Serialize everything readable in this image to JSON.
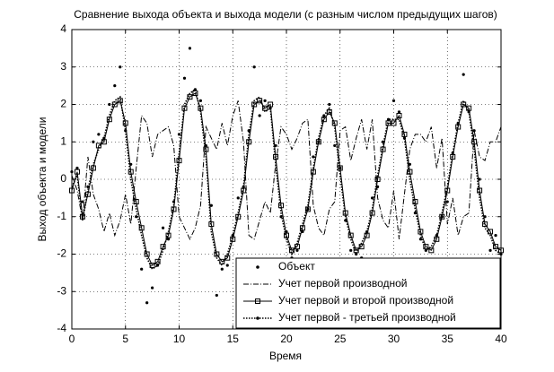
{
  "chart_data": {
    "type": "line",
    "title": "Сравнение выхода объекта и выхода модели (с разным числом предыдущих шагов)",
    "xlabel": "Время",
    "ylabel": "Выход объекта и модели",
    "x": [
      0,
      0.5,
      1,
      1.5,
      2,
      2.5,
      3,
      3.5,
      4,
      4.5,
      5,
      5.5,
      6,
      6.5,
      7,
      7.5,
      8,
      8.5,
      9,
      9.5,
      10,
      10.5,
      11,
      11.5,
      12,
      12.5,
      13,
      13.5,
      14,
      14.5,
      15,
      15.5,
      16,
      16.5,
      17,
      17.5,
      18,
      18.5,
      19,
      19.5,
      20,
      20.5,
      21,
      21.5,
      22,
      22.5,
      23,
      23.5,
      24,
      24.5,
      25,
      25.5,
      26,
      26.5,
      27,
      27.5,
      28,
      28.5,
      29,
      29.5,
      30,
      30.5,
      31,
      31.5,
      32,
      32.5,
      33,
      33.5,
      34,
      34.5,
      35,
      35.5,
      36,
      36.5,
      37,
      37.5,
      38,
      38.5,
      39,
      39.5,
      40
    ],
    "series": [
      {
        "name": "Объект",
        "color": "#000000",
        "linestyle": "none",
        "marker": "dot",
        "values": [
          0.2,
          0.3,
          -0.6,
          -0.2,
          1.0,
          1.2,
          1.1,
          2.0,
          2.5,
          3.0,
          1.3,
          0.4,
          -1.0,
          -2.4,
          -3.3,
          -2.9,
          -2.3,
          -1.3,
          -1.6,
          -0.6,
          1.2,
          2.7,
          3.5,
          2.4,
          2.1,
          0.9,
          -0.7,
          -3.1,
          -2.4,
          -2.3,
          -1.5,
          -0.5,
          -0.2,
          1.3,
          3.0,
          1.7,
          2.1,
          1.9,
          0.9,
          -1.0,
          -1.4,
          -2.1,
          -1.9,
          -1.4,
          -0.8,
          0.6,
          1.0,
          1.7,
          2.0,
          0.9,
          0.3,
          -1.1,
          -1.9,
          -2.0,
          -2.1,
          -1.4,
          -0.5,
          -0.2,
          1.0,
          1.6,
          2.1,
          1.8,
          1.1,
          0.4,
          -0.9,
          -1.6,
          -1.9,
          -2.2,
          -1.5,
          -1.0,
          -0.6,
          0.7,
          1.5,
          2.8,
          1.8,
          1.3,
          0.0,
          -1.0,
          -1.9,
          -1.5,
          -2.0
        ]
      },
      {
        "name": "Учет первой производной",
        "color": "#000000",
        "linestyle": "dashdot",
        "marker": "none",
        "values": [
          0.1,
          -0.3,
          -1.1,
          0.6,
          -0.4,
          -0.8,
          -1.4,
          -0.9,
          -1.5,
          -1.1,
          -0.4,
          -1.2,
          0.3,
          1.7,
          1.5,
          0.6,
          1.2,
          1.3,
          1.4,
          0.9,
          -1.0,
          -1.3,
          -1.6,
          -1.3,
          -0.7,
          1.4,
          1.1,
          0.8,
          1.5,
          0.9,
          1.7,
          2.1,
          1.0,
          -1.5,
          -1.6,
          -1.1,
          -0.6,
          -0.9,
          0.4,
          1.4,
          1.2,
          0.8,
          1.1,
          1.5,
          1.6,
          -0.7,
          -1.3,
          -1.5,
          -0.8,
          -0.6,
          1.3,
          1.4,
          0.5,
          1.1,
          1.6,
          0.8,
          1.6,
          -0.5,
          -1.1,
          -1.3,
          -0.3,
          -1.6,
          -0.4,
          0.8,
          1.2,
          1.2,
          1.0,
          1.4,
          0.3,
          1.1,
          -1.2,
          -0.5,
          -1.5,
          -1.0,
          -0.9,
          1.3,
          0.6,
          0.5,
          1.0,
          1.0,
          1.4
        ]
      },
      {
        "name": "Учет первой и второй производной",
        "color": "#000000",
        "linestyle": "solid",
        "marker": "square",
        "values": [
          -0.3,
          0.2,
          -1.0,
          -0.4,
          0.3,
          0.9,
          1.0,
          1.6,
          2.0,
          2.1,
          1.5,
          0.2,
          -0.6,
          -1.3,
          -2.0,
          -2.3,
          -2.2,
          -1.8,
          -1.5,
          -0.8,
          0.5,
          1.9,
          2.2,
          2.3,
          1.9,
          0.8,
          -1.2,
          -2.0,
          -2.2,
          -2.1,
          -1.6,
          -1.0,
          -0.3,
          1.0,
          2.0,
          2.1,
          1.9,
          2.0,
          0.6,
          -0.7,
          -1.5,
          -1.9,
          -1.8,
          -1.3,
          -0.8,
          0.2,
          1.0,
          1.6,
          1.8,
          1.5,
          0.3,
          -0.9,
          -1.5,
          -1.9,
          -1.8,
          -1.5,
          -0.9,
          0.0,
          0.8,
          1.5,
          1.5,
          1.7,
          1.2,
          0.2,
          -0.6,
          -1.4,
          -1.8,
          -1.9,
          -1.6,
          -1.0,
          -0.3,
          0.6,
          1.4,
          2.0,
          1.9,
          1.0,
          -0.3,
          -1.2,
          -1.4,
          -1.8,
          -1.9
        ]
      },
      {
        "name": "Учет первой - третьей производной",
        "color": "#000000",
        "linestyle": "dotted",
        "marker": "dot",
        "values": [
          -0.2,
          0.1,
          -1.1,
          -0.3,
          0.4,
          0.8,
          1.1,
          1.7,
          2.1,
          2.2,
          1.3,
          0.0,
          -0.8,
          -1.5,
          -2.1,
          -2.4,
          -2.3,
          -1.9,
          -1.4,
          -0.7,
          0.7,
          2.0,
          2.3,
          2.4,
          1.8,
          0.6,
          -1.4,
          -2.1,
          -2.3,
          -2.0,
          -1.5,
          -0.9,
          -0.2,
          1.2,
          2.1,
          2.2,
          1.8,
          1.9,
          0.4,
          -0.9,
          -1.6,
          -2.0,
          -1.7,
          -1.2,
          -0.7,
          0.3,
          1.1,
          1.7,
          1.9,
          1.4,
          0.1,
          -1.0,
          -1.6,
          -2.0,
          -1.7,
          -1.4,
          -0.8,
          0.1,
          0.9,
          1.6,
          1.6,
          1.6,
          1.1,
          0.0,
          -0.8,
          -1.5,
          -1.9,
          -1.8,
          -1.5,
          -0.9,
          -0.2,
          0.7,
          1.5,
          2.1,
          1.8,
          0.8,
          -0.5,
          -1.3,
          -1.5,
          -1.9,
          -2.0
        ]
      }
    ],
    "xlim": [
      0,
      40
    ],
    "xticks": [
      0,
      5,
      10,
      15,
      20,
      25,
      30,
      35,
      40
    ],
    "ylim": [
      -4,
      4
    ],
    "yticks": [
      -4,
      -3,
      -2,
      -1,
      0,
      1,
      2,
      3,
      4
    ],
    "grid": true,
    "legend": "lower right"
  }
}
